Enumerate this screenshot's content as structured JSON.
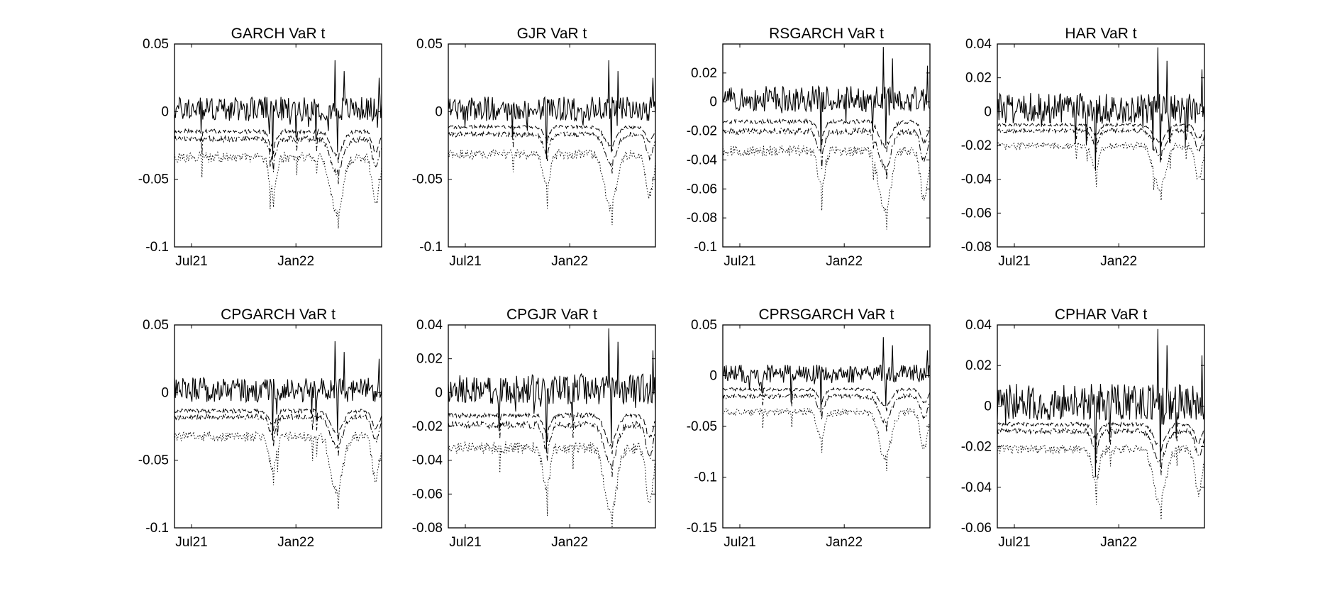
{
  "chart_data": [
    {
      "type": "line",
      "title": "GARCH VaR t",
      "ylim": [
        -0.1,
        0.05
      ],
      "yticks": [
        "0.05",
        "0",
        "-0.05",
        "-0.1"
      ],
      "yticks_values": [
        0.05,
        0,
        -0.05,
        -0.1
      ],
      "xticks": [
        "Jul21",
        "Jan22"
      ],
      "xticks_values": [
        "2021-07-01",
        "2022-01-01"
      ],
      "xlim": [
        "2021-06-01",
        "2022-06-01"
      ],
      "series": [
        {
          "style": "solid",
          "values_description": "returns",
          "level": 0.0,
          "spread": 0.012
        },
        {
          "style": "dashed",
          "level": -0.013
        },
        {
          "style": "dashdot",
          "level": -0.018
        },
        {
          "style": "dotted",
          "level": -0.03
        }
      ]
    },
    {
      "type": "line",
      "title": "GJR VaR t",
      "ylim": [
        -0.1,
        0.05
      ],
      "yticks": [
        "0.05",
        "0",
        "-0.05",
        "-0.1"
      ],
      "yticks_values": [
        0.05,
        0,
        -0.05,
        -0.1
      ],
      "xticks": [
        "Jul21",
        "Jan22"
      ],
      "xticks_values": [
        "2021-07-01",
        "2022-01-01"
      ],
      "xlim": [
        "2021-06-01",
        "2022-06-01"
      ],
      "series": [
        {
          "style": "solid",
          "level": 0.0,
          "spread": 0.012
        },
        {
          "style": "dashed",
          "level": -0.01
        },
        {
          "style": "dashdot",
          "level": -0.015
        },
        {
          "style": "dotted",
          "level": -0.028
        }
      ]
    },
    {
      "type": "line",
      "title": "RSGARCH VaR t",
      "ylim": [
        -0.1,
        0.04
      ],
      "yticks": [
        "0.02",
        "0",
        "-0.02",
        "-0.04",
        "-0.06",
        "-0.08",
        "-0.1"
      ],
      "yticks_values": [
        0.02,
        0,
        -0.02,
        -0.04,
        -0.06,
        -0.08,
        -0.1
      ],
      "xticks": [
        "Jul21",
        "Jan22"
      ],
      "xticks_values": [
        "2021-07-01",
        "2022-01-01"
      ],
      "xlim": [
        "2021-06-01",
        "2022-06-01"
      ],
      "series": [
        {
          "style": "solid",
          "level": 0.0,
          "spread": 0.012
        },
        {
          "style": "dashed",
          "level": -0.012
        },
        {
          "style": "dashdot",
          "level": -0.018
        },
        {
          "style": "dotted",
          "level": -0.03
        }
      ]
    },
    {
      "type": "line",
      "title": "HAR VaR t",
      "ylim": [
        -0.08,
        0.04
      ],
      "yticks": [
        "0.04",
        "0.02",
        "0",
        "-0.02",
        "-0.04",
        "-0.06",
        "-0.08"
      ],
      "yticks_values": [
        0.04,
        0.02,
        0,
        -0.02,
        -0.04,
        -0.06,
        -0.08
      ],
      "xticks": [
        "Jul21",
        "Jan22"
      ],
      "xticks_values": [
        "2021-07-01",
        "2022-01-01"
      ],
      "xlim": [
        "2021-06-01",
        "2022-06-01"
      ],
      "series": [
        {
          "style": "solid",
          "level": 0.0,
          "spread": 0.012
        },
        {
          "style": "dashed",
          "level": -0.007
        },
        {
          "style": "dashdot",
          "level": -0.01
        },
        {
          "style": "dotted",
          "level": -0.018
        }
      ]
    },
    {
      "type": "line",
      "title": "CPGARCH VaR t",
      "ylim": [
        -0.1,
        0.05
      ],
      "yticks": [
        "0.05",
        "0",
        "-0.05",
        "-0.1"
      ],
      "yticks_values": [
        0.05,
        0,
        -0.05,
        -0.1
      ],
      "xticks": [
        "Jul21",
        "Jan22"
      ],
      "xticks_values": [
        "2021-07-01",
        "2022-01-01"
      ],
      "xlim": [
        "2021-06-01",
        "2022-06-01"
      ],
      "series": [
        {
          "style": "solid",
          "level": 0.0,
          "spread": 0.012
        },
        {
          "style": "dashed",
          "level": -0.012
        },
        {
          "style": "dashdot",
          "level": -0.016
        },
        {
          "style": "dotted",
          "level": -0.029
        }
      ]
    },
    {
      "type": "line",
      "title": "CPGJR VaR t",
      "ylim": [
        -0.08,
        0.04
      ],
      "yticks": [
        "0.04",
        "0.02",
        "0",
        "-0.02",
        "-0.04",
        "-0.06",
        "-0.08"
      ],
      "yticks_values": [
        0.04,
        0.02,
        0,
        -0.02,
        -0.04,
        -0.06,
        -0.08
      ],
      "xticks": [
        "Jul21",
        "Jan22"
      ],
      "xticks_values": [
        "2021-07-01",
        "2022-01-01"
      ],
      "xlim": [
        "2021-06-01",
        "2022-06-01"
      ],
      "series": [
        {
          "style": "solid",
          "level": 0.0,
          "spread": 0.012
        },
        {
          "style": "dashed",
          "level": -0.012
        },
        {
          "style": "dashdot",
          "level": -0.017
        },
        {
          "style": "dotted",
          "level": -0.029
        }
      ]
    },
    {
      "type": "line",
      "title": "CPRSGARCH VaR t",
      "ylim": [
        -0.15,
        0.05
      ],
      "yticks": [
        "0.05",
        "0",
        "-0.05",
        "-0.1",
        "-0.15"
      ],
      "yticks_values": [
        0.05,
        0,
        -0.05,
        -0.1,
        -0.15
      ],
      "xticks": [
        "Jul21",
        "Jan22"
      ],
      "xticks_values": [
        "2021-07-01",
        "2022-01-01"
      ],
      "xlim": [
        "2021-06-01",
        "2022-06-01"
      ],
      "series": [
        {
          "style": "solid",
          "level": 0.0,
          "spread": 0.012
        },
        {
          "style": "dashed",
          "level": -0.012
        },
        {
          "style": "dashdot",
          "level": -0.018
        },
        {
          "style": "dotted",
          "level": -0.032
        }
      ]
    },
    {
      "type": "line",
      "title": "CPHAR VaR t",
      "ylim": [
        -0.06,
        0.04
      ],
      "yticks": [
        "0.04",
        "0.02",
        "0",
        "-0.02",
        "-0.04",
        "-0.06"
      ],
      "yticks_values": [
        0.04,
        0.02,
        0,
        -0.02,
        -0.04,
        -0.06
      ],
      "xticks": [
        "Jul21",
        "Jan22"
      ],
      "xticks_values": [
        "2021-07-01",
        "2022-01-01"
      ],
      "xlim": [
        "2021-06-01",
        "2022-06-01"
      ],
      "series": [
        {
          "style": "solid",
          "level": 0.0,
          "spread": 0.012
        },
        {
          "style": "dashed",
          "level": -0.008
        },
        {
          "style": "dashdot",
          "level": -0.011
        },
        {
          "style": "dotted",
          "level": -0.019
        }
      ]
    }
  ]
}
